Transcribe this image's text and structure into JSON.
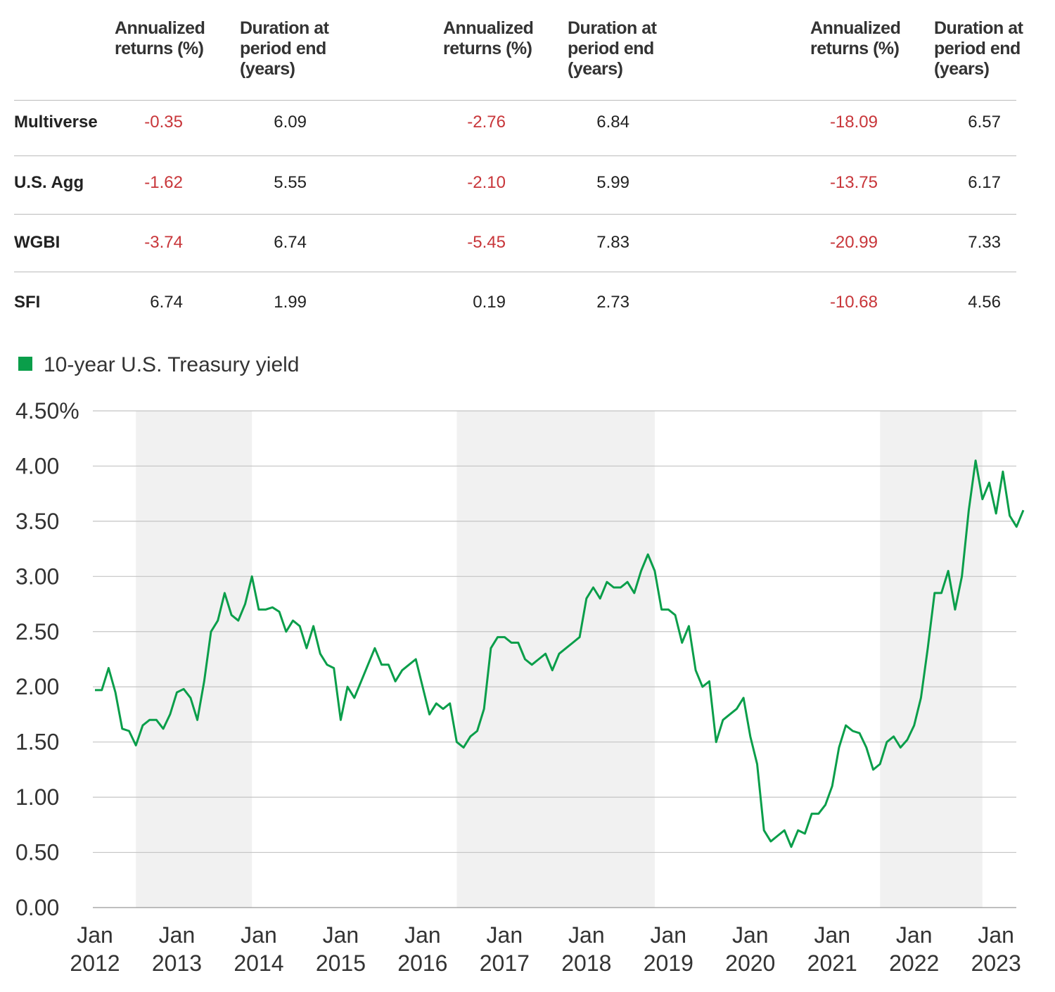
{
  "table": {
    "columns": [
      "Annualized returns (%)",
      "Duration at period end (years)",
      "Annualized returns (%)",
      "Duration at period end (years)",
      "Annualized returns (%)",
      "Duration at period end (years)"
    ],
    "rows": [
      {
        "label": "Multiverse",
        "cells": [
          "-0.35",
          "6.09",
          "-2.76",
          "6.84",
          "-18.09",
          "6.57"
        ]
      },
      {
        "label": "U.S. Agg",
        "cells": [
          "-1.62",
          "5.55",
          "-2.10",
          "5.99",
          "-13.75",
          "6.17"
        ]
      },
      {
        "label": "WGBI",
        "cells": [
          "-3.74",
          "6.74",
          "-5.45",
          "7.83",
          "-20.99",
          "7.33"
        ]
      },
      {
        "label": "SFI",
        "cells": [
          "6.74",
          "1.99",
          "0.19",
          "2.73",
          "-10.68",
          "4.56"
        ]
      }
    ]
  },
  "chart_data": {
    "type": "line",
    "x": [
      "2012-01",
      "2012-02",
      "2012-03",
      "2012-04",
      "2012-05",
      "2012-06",
      "2012-07",
      "2012-08",
      "2012-09",
      "2012-10",
      "2012-11",
      "2012-12",
      "2013-01",
      "2013-02",
      "2013-03",
      "2013-04",
      "2013-05",
      "2013-06",
      "2013-07",
      "2013-08",
      "2013-09",
      "2013-10",
      "2013-11",
      "2013-12",
      "2014-01",
      "2014-02",
      "2014-03",
      "2014-04",
      "2014-05",
      "2014-06",
      "2014-07",
      "2014-08",
      "2014-09",
      "2014-10",
      "2014-11",
      "2014-12",
      "2015-01",
      "2015-02",
      "2015-03",
      "2015-04",
      "2015-05",
      "2015-06",
      "2015-07",
      "2015-08",
      "2015-09",
      "2015-10",
      "2015-11",
      "2015-12",
      "2016-01",
      "2016-02",
      "2016-03",
      "2016-04",
      "2016-05",
      "2016-06",
      "2016-07",
      "2016-08",
      "2016-09",
      "2016-10",
      "2016-11",
      "2016-12",
      "2017-01",
      "2017-02",
      "2017-03",
      "2017-04",
      "2017-05",
      "2017-06",
      "2017-07",
      "2017-08",
      "2017-09",
      "2017-10",
      "2017-11",
      "2017-12",
      "2018-01",
      "2018-02",
      "2018-03",
      "2018-04",
      "2018-05",
      "2018-06",
      "2018-07",
      "2018-08",
      "2018-09",
      "2018-10",
      "2018-11",
      "2018-12",
      "2019-01",
      "2019-02",
      "2019-03",
      "2019-04",
      "2019-05",
      "2019-06",
      "2019-07",
      "2019-08",
      "2019-09",
      "2019-10",
      "2019-11",
      "2019-12",
      "2020-01",
      "2020-02",
      "2020-03",
      "2020-04",
      "2020-05",
      "2020-06",
      "2020-07",
      "2020-08",
      "2020-09",
      "2020-10",
      "2020-11",
      "2020-12",
      "2021-01",
      "2021-02",
      "2021-03",
      "2021-04",
      "2021-05",
      "2021-06",
      "2021-07",
      "2021-08",
      "2021-09",
      "2021-10",
      "2021-11",
      "2021-12",
      "2022-01",
      "2022-02",
      "2022-03",
      "2022-04",
      "2022-05",
      "2022-06",
      "2022-07",
      "2022-08",
      "2022-09",
      "2022-10",
      "2022-11",
      "2022-12",
      "2023-01",
      "2023-02",
      "2023-03",
      "2023-04",
      "2023-05"
    ],
    "series": [
      {
        "name": "10-year U.S. Treasury yield",
        "color": "#0a9e4a",
        "values": [
          1.97,
          1.97,
          2.17,
          1.95,
          1.62,
          1.6,
          1.47,
          1.65,
          1.7,
          1.7,
          1.62,
          1.75,
          1.95,
          1.98,
          1.9,
          1.7,
          2.05,
          2.5,
          2.6,
          2.85,
          2.65,
          2.6,
          2.75,
          3.0,
          2.7,
          2.7,
          2.72,
          2.68,
          2.5,
          2.6,
          2.55,
          2.35,
          2.55,
          2.3,
          2.2,
          2.17,
          1.7,
          2.0,
          1.9,
          2.05,
          2.2,
          2.35,
          2.2,
          2.2,
          2.05,
          2.15,
          2.2,
          2.25,
          2.0,
          1.75,
          1.85,
          1.8,
          1.85,
          1.5,
          1.45,
          1.55,
          1.6,
          1.8,
          2.35,
          2.45,
          2.45,
          2.4,
          2.4,
          2.25,
          2.2,
          2.25,
          2.3,
          2.15,
          2.3,
          2.35,
          2.4,
          2.45,
          2.8,
          2.9,
          2.8,
          2.95,
          2.9,
          2.9,
          2.95,
          2.85,
          3.05,
          3.2,
          3.05,
          2.7,
          2.7,
          2.65,
          2.4,
          2.55,
          2.15,
          2.0,
          2.05,
          1.5,
          1.7,
          1.75,
          1.8,
          1.9,
          1.55,
          1.3,
          0.7,
          0.6,
          0.65,
          0.7,
          0.55,
          0.7,
          0.67,
          0.85,
          0.85,
          0.93,
          1.1,
          1.45,
          1.65,
          1.6,
          1.58,
          1.45,
          1.25,
          1.3,
          1.5,
          1.55,
          1.45,
          1.52,
          1.65,
          1.9,
          2.35,
          2.85,
          2.85,
          3.05,
          2.7,
          3.0,
          3.6,
          4.05,
          3.7,
          3.85,
          3.57,
          3.95,
          3.55,
          3.45,
          3.6
        ]
      }
    ],
    "shaded_periods": [
      [
        "2012-07",
        "2013-12"
      ],
      [
        "2016-06",
        "2018-11"
      ],
      [
        "2021-08",
        "2022-11"
      ]
    ],
    "xlim": [
      "2012-01",
      "2023-05"
    ],
    "xticks": [
      {
        "value": "2012-01",
        "label": "Jan 2012"
      },
      {
        "value": "2013-01",
        "label": "Jan 2013"
      },
      {
        "value": "2014-01",
        "label": "Jan 2014"
      },
      {
        "value": "2015-01",
        "label": "Jan 2015"
      },
      {
        "value": "2016-01",
        "label": "Jan 2016"
      },
      {
        "value": "2017-01",
        "label": "Jan 2017"
      },
      {
        "value": "2018-01",
        "label": "Jan 2018"
      },
      {
        "value": "2019-01",
        "label": "Jan 2019"
      },
      {
        "value": "2020-01",
        "label": "Jan 2020"
      },
      {
        "value": "2021-01",
        "label": "Jan 2021"
      },
      {
        "value": "2022-01",
        "label": "Jan 2022"
      },
      {
        "value": "2023-01",
        "label": "Jan 2023"
      }
    ],
    "ylim": [
      0,
      4.5
    ],
    "yticks": [
      {
        "value": 0,
        "label": "0.00"
      },
      {
        "value": 0.5,
        "label": "0.50"
      },
      {
        "value": 1,
        "label": "1.00"
      },
      {
        "value": 1.5,
        "label": "1.50"
      },
      {
        "value": 2,
        "label": "2.00"
      },
      {
        "value": 2.5,
        "label": "2.50"
      },
      {
        "value": 3,
        "label": "3.00"
      },
      {
        "value": 3.5,
        "label": "3.50"
      },
      {
        "value": 4,
        "label": "4.00"
      },
      {
        "value": 4.5,
        "label": "4.50%"
      }
    ],
    "grid": true
  }
}
